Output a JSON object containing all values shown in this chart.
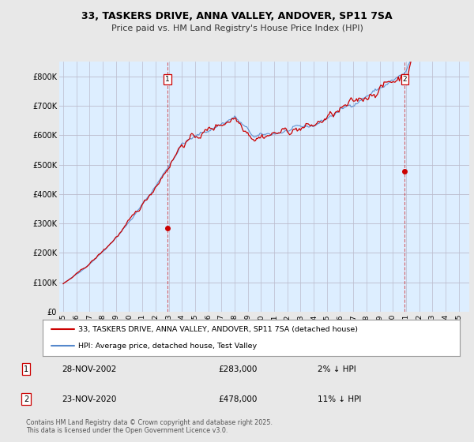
{
  "title": "33, TASKERS DRIVE, ANNA VALLEY, ANDOVER, SP11 7SA",
  "subtitle": "Price paid vs. HM Land Registry's House Price Index (HPI)",
  "ylim": [
    0,
    850000
  ],
  "yticks": [
    0,
    100000,
    200000,
    300000,
    400000,
    500000,
    600000,
    700000,
    800000
  ],
  "ytick_labels": [
    "£0",
    "£100K",
    "£200K",
    "£300K",
    "£400K",
    "£500K",
    "£600K",
    "£700K",
    "£800K"
  ],
  "background_color": "#e8e8e8",
  "plot_background": "#ddeeff",
  "grid_color": "#bbbbcc",
  "hpi_color": "#5588cc",
  "price_color": "#cc0000",
  "transaction1_price": 283000,
  "transaction1_label": "2% ↓ HPI",
  "transaction1_date": "28-NOV-2002",
  "transaction2_price": 478000,
  "transaction2_label": "11% ↓ HPI",
  "transaction2_date": "23-NOV-2020",
  "transaction1_year": 2002.9,
  "transaction2_year": 2020.9,
  "legend_line1": "33, TASKERS DRIVE, ANNA VALLEY, ANDOVER, SP11 7SA (detached house)",
  "legend_line2": "HPI: Average price, detached house, Test Valley",
  "footer": "Contains HM Land Registry data © Crown copyright and database right 2025.\nThis data is licensed under the Open Government Licence v3.0.",
  "xlim_min": 1994.7,
  "xlim_max": 2025.8
}
